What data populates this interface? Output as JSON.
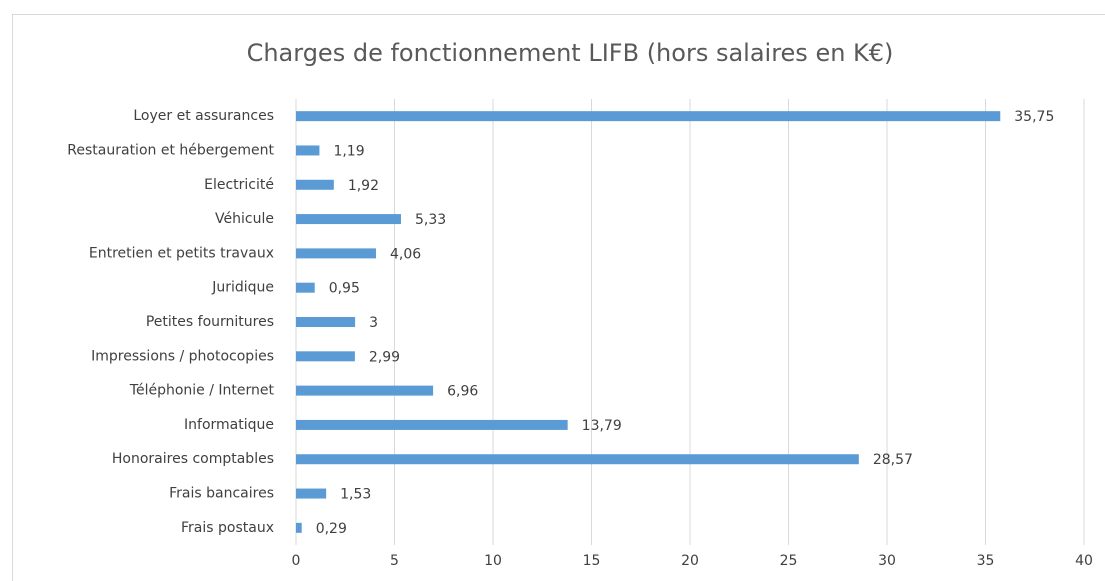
{
  "chart_data": {
    "type": "bar",
    "orientation": "horizontal",
    "title": "Charges de fonctionnement LIFB (hors salaires en K€)",
    "categories": [
      "Loyer et assurances",
      "Restauration et hébergement",
      "Electricité",
      "Véhicule",
      "Entretien et petits travaux",
      "Juridique",
      "Petites fournitures",
      "Impressions / photocopies",
      "Téléphonie / Internet",
      "Informatique",
      "Honoraires comptables",
      "Frais bancaires",
      "Frais postaux"
    ],
    "values": [
      35.75,
      1.19,
      1.92,
      5.33,
      4.06,
      0.95,
      3,
      2.99,
      6.96,
      13.79,
      28.57,
      1.53,
      0.29
    ],
    "value_labels": [
      "35,75",
      "1,19",
      "1,92",
      "5,33",
      "4,06",
      "0,95",
      "3",
      "2,99",
      "6,96",
      "13,79",
      "28,57",
      "1,53",
      "0,29"
    ],
    "color": "#5b9bd5",
    "xlim": [
      0,
      40
    ],
    "xticks": [
      0,
      5,
      10,
      15,
      20,
      25,
      30,
      35,
      40
    ],
    "grid": true
  }
}
